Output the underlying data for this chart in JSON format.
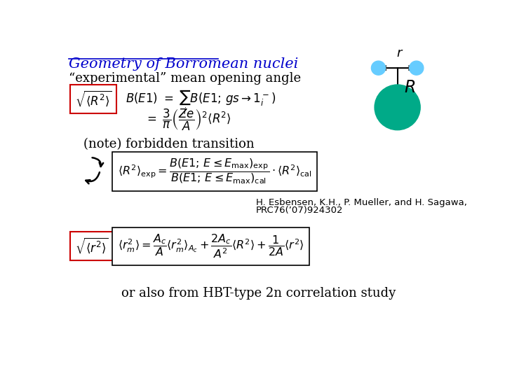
{
  "title": "Geometry of Borromean nuclei",
  "subtitle": "“experimental” mean opening angle",
  "eq1_box_label": "$\\sqrt{\\langle R^2 \\rangle}$",
  "note_text": "(note) forbidden transition",
  "citation_line1": "H. Esbensen, K.H., P. Mueller, and H. Sagawa,",
  "citation_line2": "PRC76(’07)924302",
  "eq3_box_label": "$\\sqrt{\\langle r^2 \\rangle}$",
  "footer": "or also from HBT-type 2n correlation study",
  "bg_color": "#ffffff",
  "title_color": "#0000cc",
  "text_color": "#000000",
  "box_edge_color": "#cc0000",
  "diagram_r_label": "$r$",
  "diagram_R_label": "$R$",
  "small_circle_color": "#66ccff",
  "large_circle_color": "#00aa88"
}
